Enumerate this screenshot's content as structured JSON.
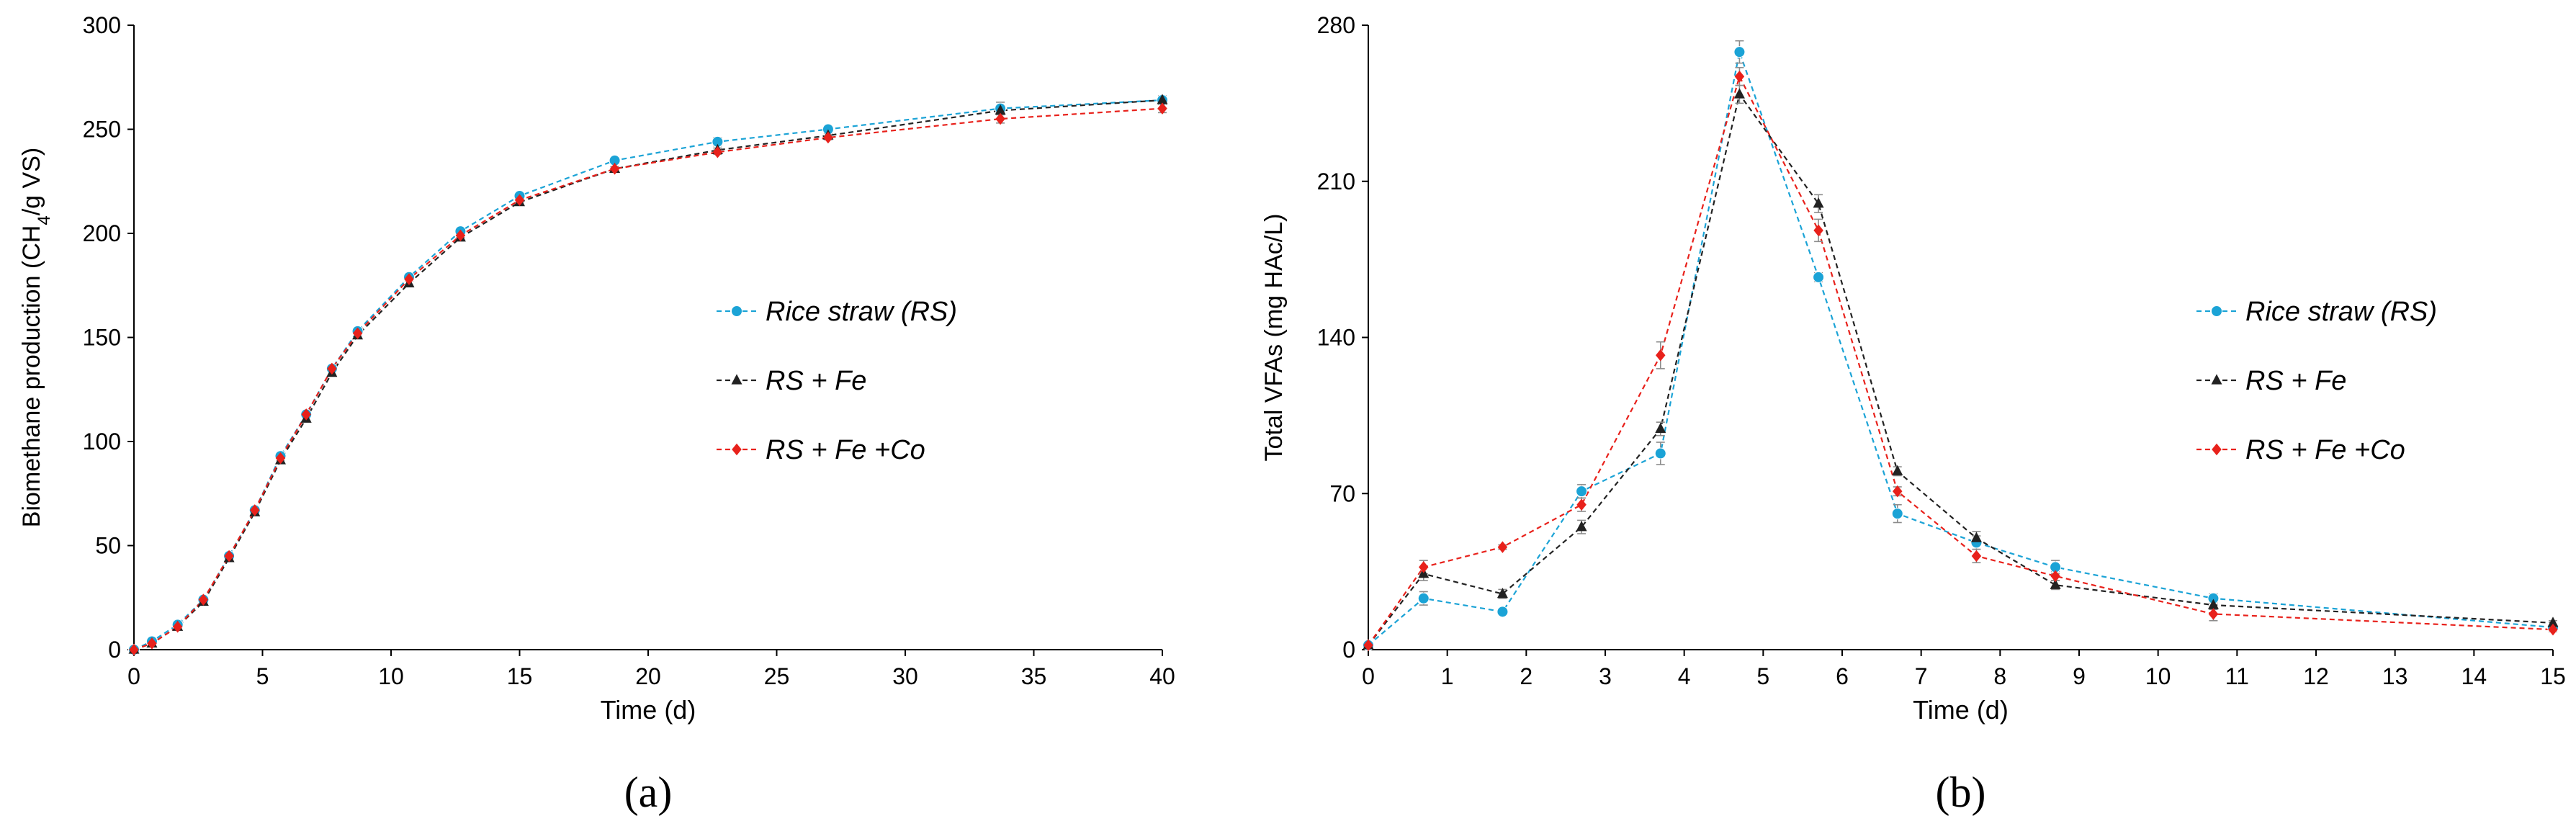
{
  "colors": {
    "rice_straw": "#1BA3D6",
    "rs_fe": "#222222",
    "rs_fe_co": "#E8211B",
    "axis": "#000000",
    "error_bar": "#8c8c8c"
  },
  "chart_data": [
    {
      "type": "line",
      "panel_label": "(a)",
      "xlabel": "Time (d)",
      "ylabel": "Biomethane production (CH4/g VS)",
      "ylabel_parts": {
        "before": "Biomethane production (CH",
        "subscript": "4",
        "after": "/g VS)"
      },
      "xlim": [
        0,
        40
      ],
      "ylim": [
        0,
        300
      ],
      "xticks": [
        "0",
        "5",
        "10",
        "15",
        "20",
        "25",
        "30",
        "35",
        "40"
      ],
      "yticks": [
        "0",
        "50",
        "100",
        "150",
        "200",
        "250",
        "300"
      ],
      "legend": [
        "Rice straw (RS)",
        "RS + Fe",
        "RS + Fe +Co"
      ],
      "x": [
        0,
        0.7,
        1.7,
        2.7,
        3.7,
        4.7,
        5.7,
        6.7,
        7.7,
        8.7,
        10.7,
        12.7,
        15,
        18.7,
        22.7,
        27,
        33.7,
        40
      ],
      "series": [
        {
          "name": "Rice straw (RS)",
          "marker": "circle",
          "values": [
            0,
            4,
            12,
            24,
            45,
            67,
            93,
            113,
            135,
            153,
            179,
            201,
            218,
            235,
            244,
            250,
            260,
            264
          ],
          "errors": [
            0,
            1,
            1,
            1,
            1,
            1,
            1,
            1,
            1,
            1,
            1,
            1,
            1,
            1,
            2,
            1,
            3,
            2
          ]
        },
        {
          "name": "RS + Fe",
          "marker": "triangle",
          "values": [
            0,
            3,
            11,
            23,
            44,
            66,
            91,
            111,
            133,
            151,
            176,
            198,
            215,
            231,
            240,
            247,
            259,
            264
          ],
          "errors": [
            0,
            1,
            1,
            1,
            1,
            1,
            1,
            1,
            1,
            1,
            1,
            1,
            1,
            1,
            1,
            1,
            2,
            2
          ]
        },
        {
          "name": "RS + Fe +Co",
          "marker": "diamond",
          "values": [
            0,
            3,
            11,
            24,
            45,
            67,
            92,
            113,
            135,
            152,
            178,
            199,
            216,
            231,
            239,
            246,
            255,
            260
          ],
          "errors": [
            0,
            1,
            1,
            1,
            1,
            1,
            1,
            1,
            1,
            1,
            1,
            1,
            1,
            1,
            1,
            1,
            2,
            2
          ]
        }
      ]
    },
    {
      "type": "line",
      "panel_label": "(b)",
      "xlabel": "Time (d)",
      "ylabel": "Total VFAs (mg HAc/L)",
      "xlim": [
        0,
        15
      ],
      "ylim": [
        0,
        280
      ],
      "xticks": [
        "0",
        "1",
        "2",
        "3",
        "4",
        "5",
        "6",
        "7",
        "8",
        "9",
        "10",
        "11",
        "12",
        "13",
        "14",
        "15"
      ],
      "yticks": [
        "0",
        "70",
        "140",
        "210",
        "280"
      ],
      "legend": [
        "Rice straw (RS)",
        "RS + Fe",
        "RS + Fe +Co"
      ],
      "x": [
        0,
        0.7,
        1.7,
        2.7,
        3.7,
        4.7,
        5.7,
        6.7,
        7.7,
        8.7,
        10.7,
        15
      ],
      "series": [
        {
          "name": "Rice straw (RS)",
          "marker": "circle",
          "values": [
            2,
            23,
            17,
            71,
            88,
            268,
            167,
            61,
            48,
            37,
            23,
            10
          ],
          "errors": [
            0,
            3,
            1,
            3,
            5,
            5,
            2,
            4,
            3,
            3,
            2,
            1
          ]
        },
        {
          "name": "RS + Fe",
          "marker": "triangle",
          "values": [
            2,
            34,
            25,
            55,
            99,
            249,
            200,
            80,
            50,
            29,
            20,
            12
          ],
          "errors": [
            0,
            3,
            2,
            3,
            3,
            4,
            4,
            2,
            3,
            2,
            2,
            1
          ]
        },
        {
          "name": "RS + Fe +Co",
          "marker": "diamond",
          "values": [
            2,
            37,
            46,
            65,
            132,
            257,
            188,
            71,
            42,
            33,
            16,
            9
          ],
          "errors": [
            0,
            3,
            1,
            3,
            6,
            4,
            5,
            2,
            3,
            2,
            3,
            1
          ]
        }
      ]
    }
  ]
}
